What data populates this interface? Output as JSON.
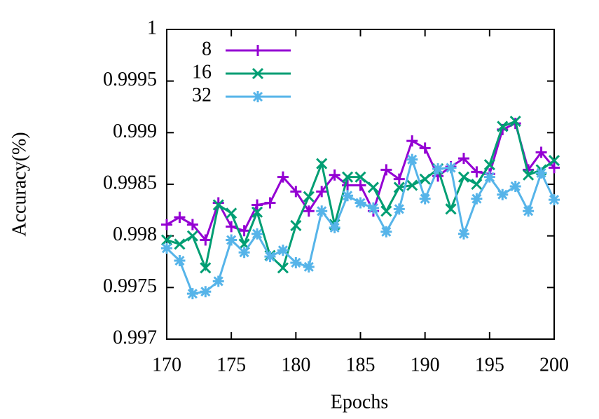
{
  "chart_data": {
    "type": "line",
    "xlabel": "Epochs",
    "ylabel": "Accuracy(%)",
    "x": [
      170,
      171,
      172,
      173,
      174,
      175,
      176,
      177,
      178,
      179,
      180,
      181,
      182,
      183,
      184,
      185,
      186,
      187,
      188,
      189,
      190,
      191,
      192,
      193,
      194,
      195,
      196,
      197,
      198,
      199,
      200
    ],
    "series": [
      {
        "name": "8",
        "color": "#9400d3",
        "marker": "plus",
        "values": [
          0.99811,
          0.99818,
          0.99811,
          0.99796,
          0.99832,
          0.99809,
          0.99805,
          0.9983,
          0.99832,
          0.99857,
          0.99843,
          0.99824,
          0.99843,
          0.99859,
          0.99849,
          0.99849,
          0.99824,
          0.99864,
          0.99855,
          0.99892,
          0.99885,
          0.99858,
          0.99867,
          0.99875,
          0.99862,
          0.9986,
          0.99903,
          0.99909,
          0.99864,
          0.99881,
          0.99866
        ]
      },
      {
        "name": "16",
        "color": "#009e73",
        "marker": "cross",
        "values": [
          0.99796,
          0.99792,
          0.998,
          0.99769,
          0.9983,
          0.99822,
          0.99792,
          0.99823,
          0.99781,
          0.99769,
          0.9981,
          0.99838,
          0.9987,
          0.99811,
          0.99857,
          0.99857,
          0.99847,
          0.99824,
          0.99847,
          0.99849,
          0.99855,
          0.99865,
          0.99826,
          0.99857,
          0.9985,
          0.99869,
          0.99906,
          0.99911,
          0.99859,
          0.99864,
          0.99873
        ]
      },
      {
        "name": "32",
        "color": "#56b4e9",
        "marker": "star",
        "values": [
          0.99788,
          0.99776,
          0.99744,
          0.99746,
          0.99756,
          0.99796,
          0.99784,
          0.99802,
          0.9978,
          0.99786,
          0.99774,
          0.9977,
          0.99824,
          0.99808,
          0.99839,
          0.99832,
          0.99827,
          0.99804,
          0.99826,
          0.99874,
          0.99836,
          0.99865,
          0.99866,
          0.99802,
          0.99836,
          0.99857,
          0.9984,
          0.99848,
          0.99824,
          0.99861,
          0.99835
        ]
      }
    ],
    "xlim": [
      170,
      200
    ],
    "xticks": [
      170,
      175,
      180,
      185,
      190,
      195,
      200
    ],
    "ylim": [
      0.997,
      1
    ],
    "yticks": [
      0.997,
      0.9975,
      0.998,
      0.9985,
      0.999,
      0.9995,
      1
    ],
    "legend": "top-left",
    "grid": false
  }
}
